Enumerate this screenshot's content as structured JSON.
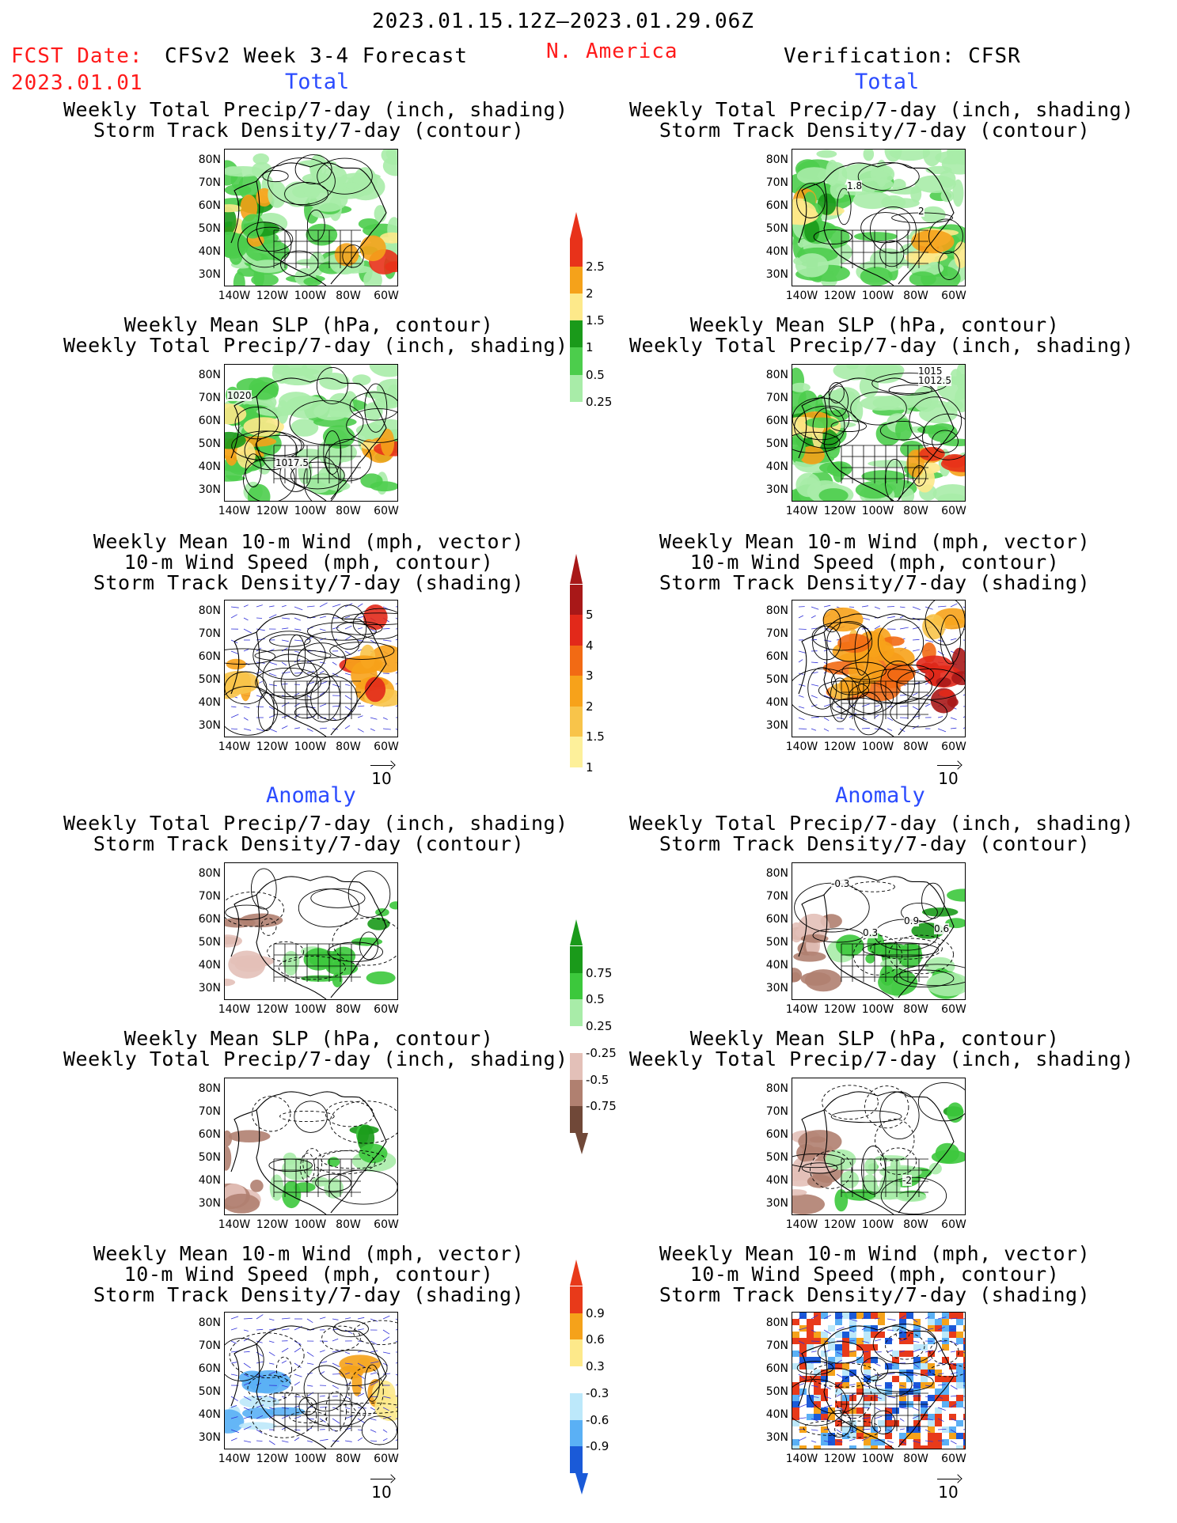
{
  "header": {
    "period": "2023.01.15.12Z—2023.01.29.06Z",
    "fcst_label": "FCST Date:",
    "fcst_date": "2023.01.01",
    "model": "CFSv2 Week 3-4 Forecast",
    "region": "N. America",
    "verification": "Verification: CFSR"
  },
  "sections": {
    "total": "Total",
    "anomaly": "Anomaly"
  },
  "titles": {
    "precip_storm": [
      "Weekly Total Precip/7-day (inch, shading)",
      "Storm Track Density/7-day (contour)"
    ],
    "slp_precip": [
      "Weekly Mean SLP (hPa, contour)",
      "Weekly Total Precip/7-day (inch, shading)"
    ],
    "wind": [
      "Weekly Mean 10-m Wind (mph, vector)",
      "10-m Wind Speed (mph, contour)",
      "Storm Track Density/7-day (shading)"
    ]
  },
  "axes": {
    "lat": [
      "80N",
      "70N",
      "60N",
      "50N",
      "40N",
      "30N"
    ],
    "lon": [
      "140W",
      "120W",
      "100W",
      "80W",
      "60W"
    ]
  },
  "contour_labels": {
    "fc_slp_total": [
      "1020",
      "1017.5"
    ],
    "obs_slp_total": [
      "1015",
      "1012.5"
    ],
    "obs_storm_total": [
      "1.8",
      "2"
    ],
    "obs_storm_anom": [
      "-0.3",
      "0.3",
      "0.9",
      "0.6"
    ],
    "obs_slp_anom": [
      "-2"
    ]
  },
  "vector_ref": "10",
  "colorbars": {
    "precip_total": {
      "labels": [
        "2.5",
        "2",
        "1.5",
        "1",
        "0.5",
        "0.25"
      ],
      "colors": [
        "#e8321a",
        "#f5a21a",
        "#fde98a",
        "#1a9a1a",
        "#4ccd4c",
        "#a8eca8"
      ]
    },
    "storm_total": {
      "labels": [
        "5",
        "4",
        "3",
        "2",
        "1.5",
        "1"
      ],
      "colors": [
        "#a81818",
        "#e2291a",
        "#f26a14",
        "#f7a21a",
        "#f8c44a",
        "#fdf09a"
      ]
    },
    "precip_anom": {
      "labels": [
        "0.75",
        "0.5",
        "0.25",
        "-0.25",
        "-0.5",
        "-0.75"
      ],
      "colors": [
        "#1a9a1a",
        "#3cc83c",
        "#a8eca8",
        "#ffffff",
        "#e3c0b8",
        "#b08070",
        "#704838"
      ]
    },
    "wind_anom": {
      "labels": [
        "0.9",
        "0.6",
        "0.3",
        "-0.3",
        "-0.6",
        "-0.9"
      ],
      "colors": [
        "#e83a1a",
        "#f5a21a",
        "#fde98a",
        "#ffffff",
        "#bce8fa",
        "#5ab0f5",
        "#1a5ad8"
      ]
    }
  }
}
